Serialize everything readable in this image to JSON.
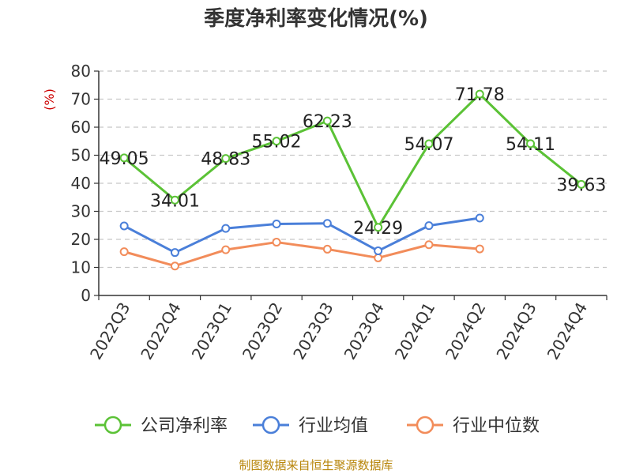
{
  "chart_data": {
    "type": "line",
    "title": "季度净利率变化情况(%)",
    "ylabel": "(%)",
    "ylim": [
      0,
      80
    ],
    "yticks": [
      0,
      10,
      20,
      30,
      40,
      50,
      60,
      70,
      80
    ],
    "grid": true,
    "legend_position": "bottom",
    "categories": [
      "2022Q3",
      "2022Q4",
      "2023Q1",
      "2023Q2",
      "2023Q3",
      "2023Q4",
      "2024Q1",
      "2024Q2",
      "2024Q3",
      "2024Q4"
    ],
    "series": [
      {
        "name": "公司净利率",
        "color": "#5bc236",
        "labels": true,
        "values": [
          49.05,
          34.01,
          48.83,
          55.02,
          62.23,
          24.29,
          54.07,
          71.78,
          54.11,
          39.63
        ]
      },
      {
        "name": "行业均值",
        "color": "#4a7fd9",
        "labels": false,
        "values": [
          24.8,
          15.3,
          23.9,
          25.5,
          25.7,
          15.9,
          24.9,
          27.6,
          null,
          null
        ]
      },
      {
        "name": "行业中位数",
        "color": "#f28c5a",
        "labels": false,
        "values": [
          15.6,
          10.5,
          16.3,
          19.0,
          16.5,
          13.4,
          18.1,
          16.6,
          null,
          null
        ]
      }
    ]
  },
  "source": "制图数据来自恒生聚源数据库"
}
